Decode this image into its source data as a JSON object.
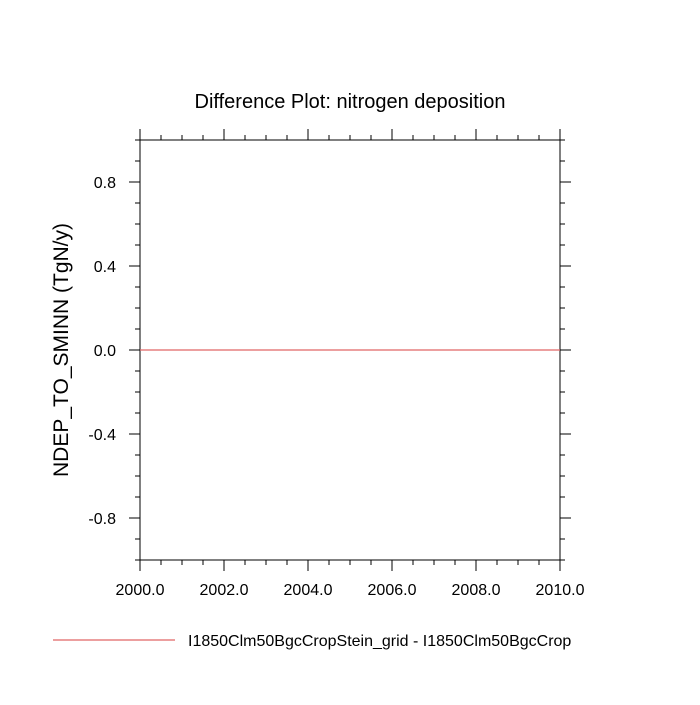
{
  "chart_data": {
    "type": "line",
    "title": "Difference Plot: nitrogen deposition",
    "xlabel": "",
    "ylabel": "NDEP_TO_SMINN  (TgN/y)",
    "xlim": [
      2000,
      2010
    ],
    "ylim": [
      -1.0,
      1.0
    ],
    "x_ticks": [
      2000,
      2002,
      2004,
      2006,
      2008,
      2010
    ],
    "x_tick_labels": [
      "2000.0",
      "2002.0",
      "2004.0",
      "2006.0",
      "2008.0",
      "2010.0"
    ],
    "y_ticks": [
      0.8,
      0.4,
      0.0,
      -0.4,
      -0.8
    ],
    "y_tick_labels": [
      "0.8",
      "0.4",
      "0.0",
      "-0.4",
      "-0.8"
    ],
    "grid": false,
    "legend_position": "bottom",
    "series": [
      {
        "name": "I1850Clm50BgcCropStein_grid - I1850Clm50BgcCrop",
        "color": "#e06666",
        "x": [
          2000,
          2010
        ],
        "y": [
          0.0,
          0.0
        ]
      }
    ]
  }
}
